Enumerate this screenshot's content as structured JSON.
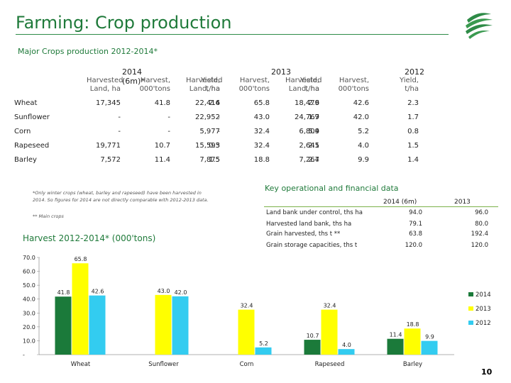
{
  "header": {
    "title": "Farming: Crop production",
    "subtitle": "Major Crops production 2012-2014*"
  },
  "production_table": {
    "years": [
      "2014 (6m)*",
      "2013",
      "2012"
    ],
    "column_headers": [
      [
        "Harvested",
        "Land, ha"
      ],
      [
        "Harvest,",
        "000'tons"
      ],
      [
        "Yield,",
        "t/ha"
      ]
    ],
    "rows": [
      {
        "crop": "Wheat",
        "values": [
          "17,345",
          "41.8",
          "2.4",
          "22,416",
          "65.8",
          "2.9",
          "18,476",
          "42.6",
          "2.3"
        ]
      },
      {
        "crop": "Sunflower",
        "values": [
          "-",
          "-",
          "-",
          "22,952",
          "43.0",
          "1.9",
          "24,767",
          "42.0",
          "1.7"
        ]
      },
      {
        "crop": "Corn",
        "values": [
          "-",
          "-",
          "-",
          "5,977",
          "32.4",
          "5.4",
          "6,809",
          "5.2",
          "0.8"
        ]
      },
      {
        "crop": "Rapeseed",
        "values": [
          "19,771",
          "10.7",
          "0.5",
          "15,593",
          "32.4",
          "2.1",
          "2,645",
          "4.0",
          "1.5"
        ]
      },
      {
        "crop": "Barley",
        "values": [
          "7,572",
          "11.4",
          "1.5",
          "7,875",
          "18.8",
          "2.4",
          "7,267",
          "9.9",
          "1.4"
        ]
      }
    ]
  },
  "footnotes": {
    "line1": "*Only winter crops (wheat, barley and rapeseed) have been harvested in",
    "line2": "2014. So figures for 2014 are not directly comparable with 2012-2013 data.",
    "line3": "** Main crops"
  },
  "key_data": {
    "title": "Key operational and financial data",
    "headers": [
      "2014 (6m)",
      "2013"
    ],
    "rows": [
      {
        "label": "Land bank under control, ths ha",
        "v2014": "94.0",
        "v2013": "96.0"
      },
      {
        "label": "Harvested land bank, ths ha",
        "v2014": "79.1",
        "v2013": "80.0"
      },
      {
        "label": "Grain harvested, ths t **",
        "v2014": "63.8",
        "v2013": "192.4"
      },
      {
        "label": "Grain storage capacities, ths t",
        "v2014": "120.0",
        "v2013": "120.0"
      }
    ]
  },
  "colors": {
    "accent": "#1f7a3a",
    "s2014": "#1b7a3a",
    "s2013": "#ffff00",
    "s2012": "#33ccf0"
  },
  "chart_data": {
    "type": "bar",
    "title": "Harvest 2012-2014* (000'tons)",
    "categories": [
      "Wheat",
      "Sunflower",
      "Corn",
      "Rapeseed",
      "Barley"
    ],
    "series": [
      {
        "name": "2014",
        "values": [
          41.8,
          null,
          null,
          10.7,
          11.4
        ]
      },
      {
        "name": "2013",
        "values": [
          65.8,
          43.0,
          32.4,
          32.4,
          18.8
        ]
      },
      {
        "name": "2012",
        "values": [
          42.6,
          42.0,
          5.2,
          4.0,
          9.9
        ]
      }
    ],
    "data_labels": [
      [
        "41.8",
        "",
        "",
        "10.7",
        "11.4"
      ],
      [
        "65.8",
        "43.0",
        "32.4",
        "32.4",
        "18.8"
      ],
      [
        "42.6",
        "42.0",
        "5.2",
        "4.0",
        "9.9"
      ]
    ],
    "ylim": [
      0,
      70
    ],
    "yticks": [
      "-",
      "10.0",
      "20.0",
      "30.0",
      "40.0",
      "50.0",
      "60.0",
      "70.0"
    ],
    "legend": [
      "2014",
      "2013",
      "2012"
    ],
    "legend_position": "right"
  },
  "page_number": "10"
}
